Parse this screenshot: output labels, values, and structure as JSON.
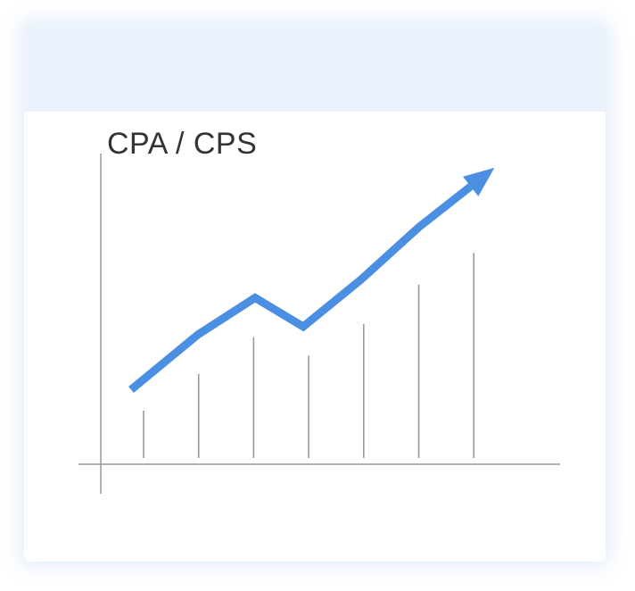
{
  "card": {
    "header_color": "#eaf2fc"
  },
  "chart_data": {
    "type": "bar",
    "title": "CPA / CPS",
    "xlabel": "",
    "ylabel": "",
    "ylim": [
      0,
      12
    ],
    "grid": false,
    "bar_style": "thin vertical lines",
    "bar_color": "#999999",
    "axis_color": "#999999",
    "values": [
      1.8,
      3.2,
      4.6,
      3.9,
      5.1,
      6.6,
      7.8
    ],
    "trend": {
      "type": "line-with-arrow",
      "color": "#4a8fe2",
      "values": [
        2.6,
        4.7,
        6.1,
        5.0,
        6.8,
        8.8,
        10.8
      ]
    }
  }
}
